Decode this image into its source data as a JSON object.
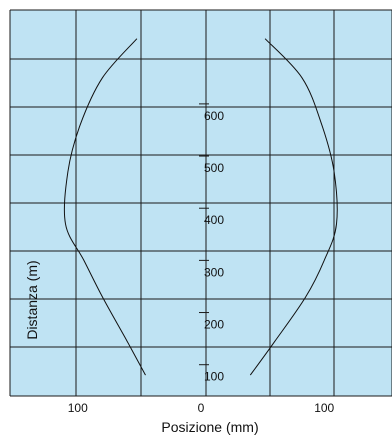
{
  "chart_data": {
    "type": "line",
    "title": "",
    "xlabel": "Posizione (mm)",
    "ylabel": "Distanza (m)",
    "xlim": [
      -155,
      155
    ],
    "ylim": [
      40,
      780
    ],
    "grid": true,
    "background": "#bfe3f3",
    "grid_color": "#1a1a1a",
    "line_color": "#111111",
    "x_ticks": [
      {
        "value": -100,
        "label": "100"
      },
      {
        "value": 0,
        "label": "0"
      },
      {
        "value": 100,
        "label": "100"
      }
    ],
    "y_ticks": [
      {
        "value": 100,
        "label": "100"
      },
      {
        "value": 200,
        "label": "200"
      },
      {
        "value": 300,
        "label": "300"
      },
      {
        "value": 400,
        "label": "400"
      },
      {
        "value": 500,
        "label": "500"
      },
      {
        "value": 600,
        "label": "600"
      }
    ],
    "series": [
      {
        "x": [
          -45,
          -60,
          -80,
          -95,
          -110,
          -108,
          -98,
          -80,
          -52
        ],
        "y": [
          80,
          145,
          230,
          300,
          370,
          470,
          560,
          650,
          725
        ]
      },
      {
        "x": [
          40,
          60,
          85,
          100,
          110,
          108,
          98,
          82,
          52
        ],
        "y": [
          80,
          145,
          230,
          300,
          370,
          470,
          560,
          650,
          725
        ]
      }
    ]
  }
}
